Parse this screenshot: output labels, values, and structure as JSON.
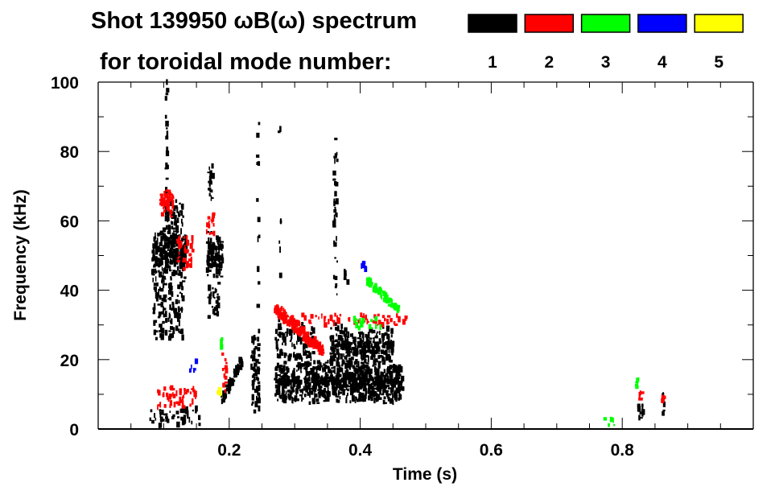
{
  "chart_data": {
    "type": "heatmap",
    "title_line1": "Shot 139950 ωB(ω) spectrum",
    "title_line2": "for toroidal mode number:",
    "xlabel": "Time (s)",
    "ylabel": "Frequency (kHz)",
    "xlim": [
      0,
      1.0
    ],
    "ylim": [
      0,
      100
    ],
    "xticks": [
      "0.2",
      "0.4",
      "0.6",
      "0.8"
    ],
    "xtick_values": [
      0.2,
      0.4,
      0.6,
      0.8
    ],
    "yticks": [
      "0",
      "20",
      "40",
      "60",
      "80",
      "100"
    ],
    "ytick_values": [
      0,
      20,
      40,
      60,
      80,
      100
    ],
    "legend": [
      {
        "label": "1",
        "color": "#000000"
      },
      {
        "label": "2",
        "color": "#ff0000"
      },
      {
        "label": "3",
        "color": "#00ff00"
      },
      {
        "label": "4",
        "color": "#0000ff"
      },
      {
        "label": "5",
        "color": "#ffff00"
      }
    ],
    "legend_placement": "top-right",
    "features": [
      {
        "mode": 1,
        "t": [
          0.083,
          0.135
        ],
        "f": [
          42,
          59
        ],
        "density": 0.9
      },
      {
        "mode": 1,
        "t": [
          0.085,
          0.13
        ],
        "f": [
          26,
          42
        ],
        "density": 0.45
      },
      {
        "mode": 1,
        "t": [
          0.1,
          0.13
        ],
        "f": [
          58,
          66
        ],
        "density": 0.5
      },
      {
        "mode": 1,
        "t": [
          0.166,
          0.19
        ],
        "f": [
          43,
          57
        ],
        "density": 0.9
      },
      {
        "mode": 1,
        "t": [
          0.168,
          0.185
        ],
        "f": [
          32,
          43
        ],
        "density": 0.4
      },
      {
        "mode": 1,
        "t": [
          0.168,
          0.176
        ],
        "f": [
          66,
          76
        ],
        "density": 0.6
      },
      {
        "mode": 1,
        "t": [
          0.103,
          0.106
        ],
        "f": [
          58,
          100
        ],
        "density": 0.6
      },
      {
        "mode": 1,
        "t": [
          0.075,
          0.155
        ],
        "f": [
          1,
          6
        ],
        "density": 0.35
      },
      {
        "mode": 1,
        "t": [
          0.188,
          0.22
        ],
        "f": [
          8,
          20
        ],
        "density": 0.6,
        "diag": true
      },
      {
        "mode": 1,
        "t": [
          0.234,
          0.246
        ],
        "f": [
          3,
          28
        ],
        "density": 0.7
      },
      {
        "mode": 1,
        "t": [
          0.243,
          0.246
        ],
        "f": [
          28,
          91
        ],
        "density": 0.2
      },
      {
        "mode": 1,
        "t": [
          0.27,
          0.465
        ],
        "f": [
          7,
          20
        ],
        "density": 0.85
      },
      {
        "mode": 1,
        "t": [
          0.27,
          0.33
        ],
        "f": [
          20,
          30
        ],
        "density": 0.45
      },
      {
        "mode": 1,
        "t": [
          0.355,
          0.45
        ],
        "f": [
          17,
          30
        ],
        "density": 0.7
      },
      {
        "mode": 1,
        "t": [
          0.36,
          0.365
        ],
        "f": [
          30,
          85
        ],
        "density": 0.35
      },
      {
        "mode": 1,
        "t": [
          0.376,
          0.382
        ],
        "f": [
          42,
          47
        ],
        "density": 0.8
      },
      {
        "mode": 1,
        "t": [
          0.276,
          0.279
        ],
        "f": [
          28,
          88
        ],
        "density": 0.15
      },
      {
        "mode": 1,
        "t": [
          0.825,
          0.832
        ],
        "f": [
          2,
          8
        ],
        "density": 0.8
      },
      {
        "mode": 1,
        "t": [
          0.862,
          0.864
        ],
        "f": [
          2,
          10
        ],
        "density": 0.5
      },
      {
        "mode": 2,
        "t": [
          0.095,
          0.115
        ],
        "f": [
          61,
          71
        ],
        "density": 0.7
      },
      {
        "mode": 2,
        "t": [
          0.12,
          0.145
        ],
        "f": [
          46,
          56
        ],
        "density": 0.45
      },
      {
        "mode": 2,
        "t": [
          0.165,
          0.178
        ],
        "f": [
          56,
          62
        ],
        "density": 0.6
      },
      {
        "mode": 2,
        "t": [
          0.09,
          0.15
        ],
        "f": [
          6,
          12
        ],
        "density": 0.4
      },
      {
        "mode": 2,
        "t": [
          0.27,
          0.345
        ],
        "f": [
          22,
          35
        ],
        "density": 0.55,
        "diag": true,
        "dir": -1
      },
      {
        "mode": 2,
        "t": [
          0.3,
          0.47
        ],
        "f": [
          30,
          33
        ],
        "density": 0.35
      },
      {
        "mode": 2,
        "t": [
          0.19,
          0.196
        ],
        "f": [
          10,
          22
        ],
        "density": 0.5
      },
      {
        "mode": 2,
        "t": [
          0.826,
          0.832
        ],
        "f": [
          8,
          12
        ],
        "density": 0.8
      },
      {
        "mode": 2,
        "t": [
          0.86,
          0.864
        ],
        "f": [
          8,
          10
        ],
        "density": 0.6
      },
      {
        "mode": 3,
        "t": [
          0.41,
          0.46
        ],
        "f": [
          34,
          43
        ],
        "density": 0.5,
        "diag": true,
        "dir": -1
      },
      {
        "mode": 3,
        "t": [
          0.39,
          0.44
        ],
        "f": [
          29,
          32
        ],
        "density": 0.3
      },
      {
        "mode": 3,
        "t": [
          0.187,
          0.19
        ],
        "f": [
          22,
          26
        ],
        "density": 0.6
      },
      {
        "mode": 3,
        "t": [
          0.82,
          0.825
        ],
        "f": [
          12,
          15
        ],
        "density": 0.5
      },
      {
        "mode": 3,
        "t": [
          0.76,
          0.8
        ],
        "f": [
          1,
          3
        ],
        "density": 0.15
      },
      {
        "mode": 4,
        "t": [
          0.4,
          0.41
        ],
        "f": [
          46,
          48
        ],
        "density": 0.3
      },
      {
        "mode": 4,
        "t": [
          0.14,
          0.15
        ],
        "f": [
          16,
          20
        ],
        "density": 0.3
      },
      {
        "mode": 5,
        "t": [
          0.183,
          0.188
        ],
        "f": [
          10,
          12
        ],
        "density": 0.5
      }
    ]
  }
}
